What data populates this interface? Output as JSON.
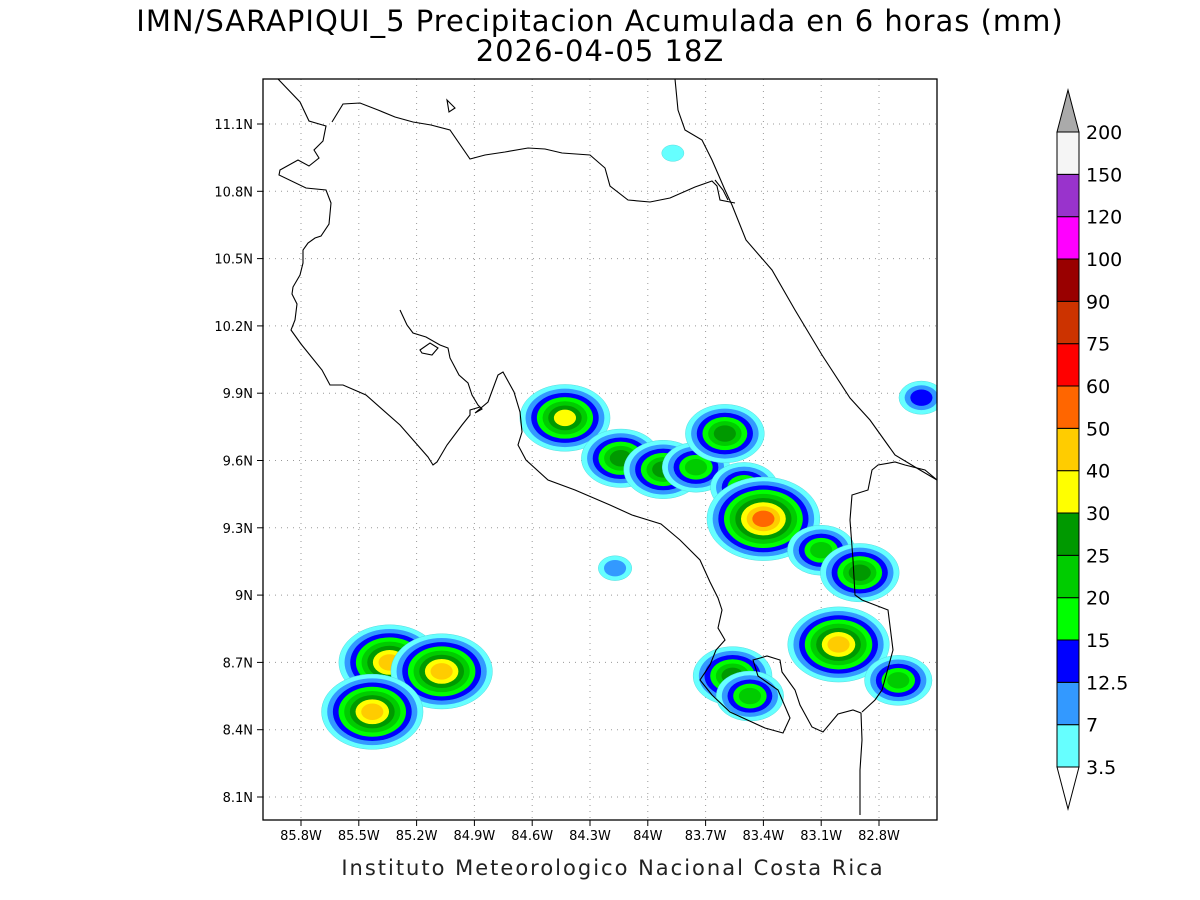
{
  "title": {
    "line1": "IMN/SARAPIQUI_5 Precipitacion Acumulada en 6 horas (mm)",
    "line2": "2026-04-05 18Z"
  },
  "credit": "Instituto Meteorologico Nacional Costa Rica",
  "map": {
    "lon_range": [
      -86.0,
      -83.0
    ],
    "lat_range": [
      8.0,
      11.2
    ],
    "lat_ticks": [
      {
        "value": 11.1,
        "label": "11.1N"
      },
      {
        "value": 10.8,
        "label": "10.8N"
      },
      {
        "value": 10.5,
        "label": "10.5N"
      },
      {
        "value": 10.2,
        "label": "10.2N"
      },
      {
        "value": 9.9,
        "label": "9.9N"
      },
      {
        "value": 9.6,
        "label": "9.6N"
      },
      {
        "value": 9.3,
        "label": "9.3N"
      },
      {
        "value": 9.0,
        "label": "9N"
      },
      {
        "value": 8.7,
        "label": "8.7N"
      },
      {
        "value": 8.4,
        "label": "8.4N"
      },
      {
        "value": 8.1,
        "label": "8.1N"
      }
    ],
    "lon_ticks": [
      {
        "value": -85.8,
        "label": "85.8W"
      },
      {
        "value": -85.5,
        "label": "85.5W"
      },
      {
        "value": -85.2,
        "label": "85.2W"
      },
      {
        "value": -84.9,
        "label": "84.9W"
      },
      {
        "value": -84.6,
        "label": "84.6W"
      },
      {
        "value": -84.3,
        "label": "84.3W"
      },
      {
        "value": -84.0,
        "label": "84W"
      },
      {
        "value": -83.7,
        "label": "83.7W"
      },
      {
        "value": -83.4,
        "label": "83.4W"
      },
      {
        "value": -83.1,
        "label": "83.1W"
      },
      {
        "value": -82.8,
        "label": "82.8W"
      }
    ],
    "grid": "dotted"
  },
  "colorbar": {
    "levels": [
      "3.5",
      "7",
      "12.5",
      "15",
      "20",
      "25",
      "30",
      "40",
      "50",
      "60",
      "75",
      "90",
      "100",
      "120",
      "150",
      "200"
    ],
    "colors": [
      "#66ffff",
      "#3399ff",
      "#0000ff",
      "#00ff00",
      "#00cc00",
      "#009900",
      "#ffff00",
      "#ffcc00",
      "#ff6600",
      "#ff0000",
      "#cc3300",
      "#990000",
      "#ff00ff",
      "#9933cc",
      "#f5f5f5",
      "#aaaaaa"
    ]
  },
  "precip_cells": [
    {
      "lon": -84.43,
      "lat": 9.79,
      "level": 30
    },
    {
      "lon": -84.14,
      "lat": 9.61,
      "level": 25
    },
    {
      "lon": -83.92,
      "lat": 9.56,
      "level": 25
    },
    {
      "lon": -83.75,
      "lat": 9.57,
      "level": 20
    },
    {
      "lon": -83.6,
      "lat": 9.72,
      "level": 25
    },
    {
      "lon": -83.5,
      "lat": 9.48,
      "level": 20
    },
    {
      "lon": -83.4,
      "lat": 9.34,
      "level": 50
    },
    {
      "lon": -83.1,
      "lat": 9.2,
      "level": 20
    },
    {
      "lon": -82.9,
      "lat": 9.1,
      "level": 25
    },
    {
      "lon": -83.01,
      "lat": 8.78,
      "level": 40
    },
    {
      "lon": -83.56,
      "lat": 8.64,
      "level": 25
    },
    {
      "lon": -83.47,
      "lat": 8.55,
      "level": 20
    },
    {
      "lon": -82.7,
      "lat": 8.62,
      "level": 20
    },
    {
      "lon": -85.34,
      "lat": 8.7,
      "level": 40
    },
    {
      "lon": -85.07,
      "lat": 8.66,
      "level": 40
    },
    {
      "lon": -85.43,
      "lat": 8.48,
      "level": 40
    },
    {
      "lon": -83.87,
      "lat": 10.97,
      "level": 3.5
    },
    {
      "lon": -84.17,
      "lat": 9.12,
      "level": 7
    },
    {
      "lon": -82.58,
      "lat": 9.88,
      "level": 12.5
    }
  ]
}
